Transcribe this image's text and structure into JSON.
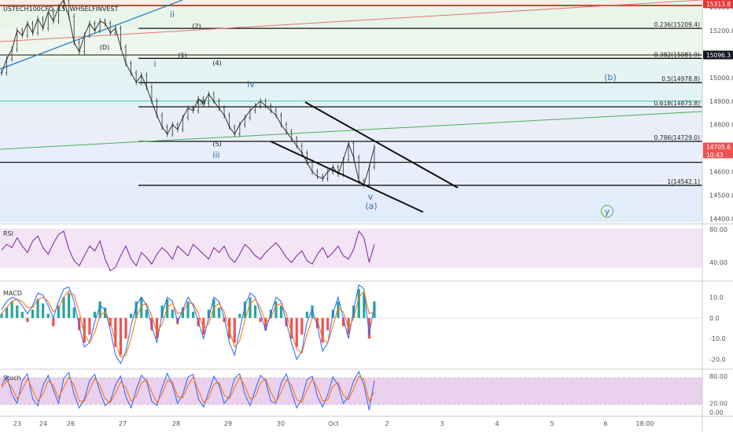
{
  "header": {
    "symbol_title": "USTECH100CFD, 15, WHSELFINVEST"
  },
  "colors": {
    "background": "#ffffff",
    "price_line": "#333333",
    "resistance_red": "#e53935",
    "trend_blue": "#2a7fbf",
    "trend_green": "#4caf50",
    "rsi_line": "#7b1fa2",
    "rsi_band": "#f3e5f5",
    "macd_line": "#2962ff",
    "signal_line": "#ff6d00",
    "hist_pos": "#26a69a",
    "hist_neg": "#ef5350",
    "stoch_k": "#2962ff",
    "stoch_d": "#ff6d00",
    "stoch_band": "#e1bee7",
    "wave_blue": "#2f6fb0",
    "current_tag": "#ef5350",
    "dark_tag": "#131722"
  },
  "chart_data": [
    {
      "type": "line",
      "panel": "price",
      "y_ticks": [
        "15300.0",
        "15200.0",
        "15100.0",
        "15000.0",
        "14900.0",
        "14800.0",
        "14700.0",
        "14600.0",
        "14500.0",
        "14400.0"
      ],
      "ylim": [
        14385,
        15330
      ],
      "x_ticks": [
        "23",
        "24",
        "26",
        "27",
        "28",
        "29",
        "30",
        "Oct",
        "2",
        "3",
        "4",
        "5",
        "6",
        "18:00"
      ],
      "price_tags": [
        {
          "label": "15313.8",
          "value": 15313.8,
          "style": "red"
        },
        {
          "label": "15096.3",
          "value": 15096.3,
          "style": "dark"
        },
        {
          "label": "14705.6",
          "sub": "10:43",
          "value": 14705.6,
          "style": "current"
        }
      ],
      "fib_levels": [
        {
          "label": "0.236(15209.4)",
          "value": 15209.4
        },
        {
          "label": "0.382(15081.9)",
          "value": 15081.9
        },
        {
          "label": "0.5(14978.8)",
          "value": 14978.8
        },
        {
          "label": "0.618(14875.8)",
          "value": 14875.8
        },
        {
          "label": "0.786(14729.0)",
          "value": 14729.0
        },
        {
          "label": "1(14542.1)",
          "value": 14542.1
        }
      ],
      "wave_labels_black": [
        "(D)",
        "(2)",
        "(1)",
        "(4)",
        "(3)",
        "(5)"
      ],
      "wave_labels_blue": [
        "ii",
        "i",
        "iv",
        "iii",
        "v",
        "(a)",
        "(b)",
        "y"
      ],
      "series": [
        {
          "values": [
            15020,
            15080,
            15120,
            15200,
            15180,
            15230,
            15190,
            15250,
            15210,
            15280,
            15240,
            15300,
            15330,
            15260,
            15150,
            15110,
            15180,
            15230,
            15200,
            15240,
            15230,
            15190,
            15210,
            15130,
            15060,
            15020,
            14980,
            15010,
            14960,
            14900,
            14840,
            14790,
            14760,
            14800,
            14780,
            14830,
            14870,
            14860,
            14910,
            14890,
            14930,
            14900,
            14870,
            14840,
            14790,
            14760,
            14800,
            14830,
            14860,
            14880,
            14900,
            14880,
            14860,
            14840,
            14800,
            14770,
            14740,
            14710,
            14680,
            14640,
            14600,
            14580,
            14570,
            14600,
            14620,
            14590,
            14650,
            14720,
            14660,
            14560,
            14545,
            14620,
            14705
          ]
        }
      ]
    },
    {
      "type": "line",
      "panel": "rsi",
      "label": "RSI",
      "y_ticks": [
        "80.00",
        "40.00"
      ],
      "ylim": [
        20,
        85
      ],
      "series": [
        {
          "values": [
            55,
            62,
            58,
            70,
            60,
            52,
            66,
            72,
            58,
            50,
            63,
            74,
            78,
            56,
            42,
            36,
            48,
            60,
            54,
            66,
            44,
            30,
            34,
            48,
            60,
            44,
            36,
            52,
            46,
            38,
            50,
            58,
            52,
            44,
            60,
            54,
            48,
            62,
            56,
            50,
            44,
            58,
            52,
            60,
            46,
            40,
            50,
            62,
            56,
            48,
            44,
            52,
            58,
            64,
            56,
            46,
            40,
            48,
            54,
            42,
            38,
            50,
            58,
            46,
            52,
            60,
            48,
            44,
            56,
            78,
            70,
            40,
            62
          ]
        }
      ]
    },
    {
      "type": "bar",
      "panel": "macd",
      "label": "MACD",
      "y_ticks": [
        "10.0",
        "0.0",
        "-10.0",
        "-20.0"
      ],
      "ylim": [
        -24,
        17
      ],
      "series": [
        {
          "name": "histogram",
          "values": [
            2,
            5,
            8,
            6,
            3,
            -2,
            4,
            9,
            7,
            2,
            -4,
            6,
            10,
            12,
            5,
            -6,
            -12,
            -8,
            3,
            8,
            5,
            -4,
            -14,
            -18,
            -10,
            2,
            8,
            10,
            4,
            -6,
            -10,
            6,
            9,
            4,
            -3,
            5,
            8,
            3,
            -4,
            -8,
            4,
            9,
            5,
            -2,
            -10,
            -12,
            2,
            8,
            10,
            6,
            -2,
            -6,
            4,
            8,
            6,
            -4,
            -10,
            -14,
            -8,
            3,
            6,
            -5,
            -12,
            -6,
            4,
            8,
            -4,
            -8,
            6,
            14,
            12,
            -10,
            8
          ]
        },
        {
          "name": "macd",
          "values": [
            4,
            8,
            10,
            9,
            6,
            2,
            6,
            12,
            11,
            6,
            0,
            8,
            14,
            15,
            8,
            -4,
            -14,
            -12,
            -2,
            6,
            4,
            -6,
            -18,
            -22,
            -16,
            -4,
            6,
            10,
            6,
            -4,
            -12,
            2,
            10,
            8,
            -2,
            4,
            10,
            6,
            -2,
            -10,
            0,
            10,
            8,
            0,
            -12,
            -18,
            -6,
            6,
            12,
            10,
            2,
            -6,
            2,
            10,
            8,
            -2,
            -12,
            -20,
            -16,
            -2,
            4,
            -4,
            -16,
            -12,
            2,
            10,
            0,
            -10,
            4,
            16,
            14,
            -8,
            6
          ]
        },
        {
          "name": "signal",
          "values": [
            2,
            5,
            8,
            9,
            8,
            5,
            5,
            9,
            10,
            8,
            3,
            5,
            10,
            13,
            11,
            3,
            -8,
            -12,
            -7,
            1,
            3,
            -2,
            -12,
            -19,
            -18,
            -10,
            0,
            6,
            7,
            1,
            -7,
            -3,
            5,
            7,
            2,
            3,
            7,
            7,
            2,
            -5,
            -3,
            5,
            7,
            3,
            -6,
            -14,
            -11,
            -1,
            7,
            9,
            5,
            -2,
            0,
            6,
            7,
            2,
            -7,
            -15,
            -17,
            -8,
            0,
            -1,
            -10,
            -12,
            -4,
            5,
            3,
            -5,
            0,
            10,
            13,
            2,
            3
          ]
        }
      ]
    },
    {
      "type": "line",
      "panel": "stoch",
      "label": "Stoch",
      "y_ticks": [
        "80.00",
        "20.00",
        "0.00"
      ],
      "ylim": [
        -5,
        92
      ],
      "series": [
        {
          "name": "%K",
          "values": [
            60,
            80,
            40,
            20,
            70,
            85,
            30,
            15,
            60,
            82,
            50,
            20,
            75,
            88,
            40,
            10,
            30,
            70,
            84,
            45,
            15,
            25,
            60,
            80,
            35,
            10,
            50,
            82,
            70,
            25,
            15,
            55,
            86,
            60,
            20,
            40,
            78,
            84,
            30,
            12,
            45,
            80,
            60,
            20,
            35,
            75,
            85,
            40,
            15,
            50,
            82,
            70,
            25,
            20,
            65,
            85,
            45,
            10,
            30,
            72,
            80,
            35,
            12,
            40,
            78,
            60,
            20,
            35,
            70,
            90,
            60,
            5,
            70
          ]
        },
        {
          "name": "%D",
          "values": [
            55,
            70,
            55,
            30,
            50,
            75,
            50,
            25,
            40,
            70,
            60,
            32,
            55,
            78,
            60,
            25,
            25,
            50,
            75,
            60,
            30,
            22,
            42,
            68,
            55,
            25,
            35,
            65,
            72,
            45,
            22,
            40,
            70,
            68,
            35,
            32,
            60,
            78,
            50,
            22,
            32,
            62,
            66,
            38,
            30,
            55,
            78,
            58,
            30,
            35,
            65,
            74,
            45,
            22,
            45,
            72,
            60,
            28,
            22,
            50,
            74,
            55,
            25,
            28,
            58,
            66,
            38,
            28,
            52,
            80,
            72,
            25,
            45
          ]
        }
      ]
    }
  ]
}
